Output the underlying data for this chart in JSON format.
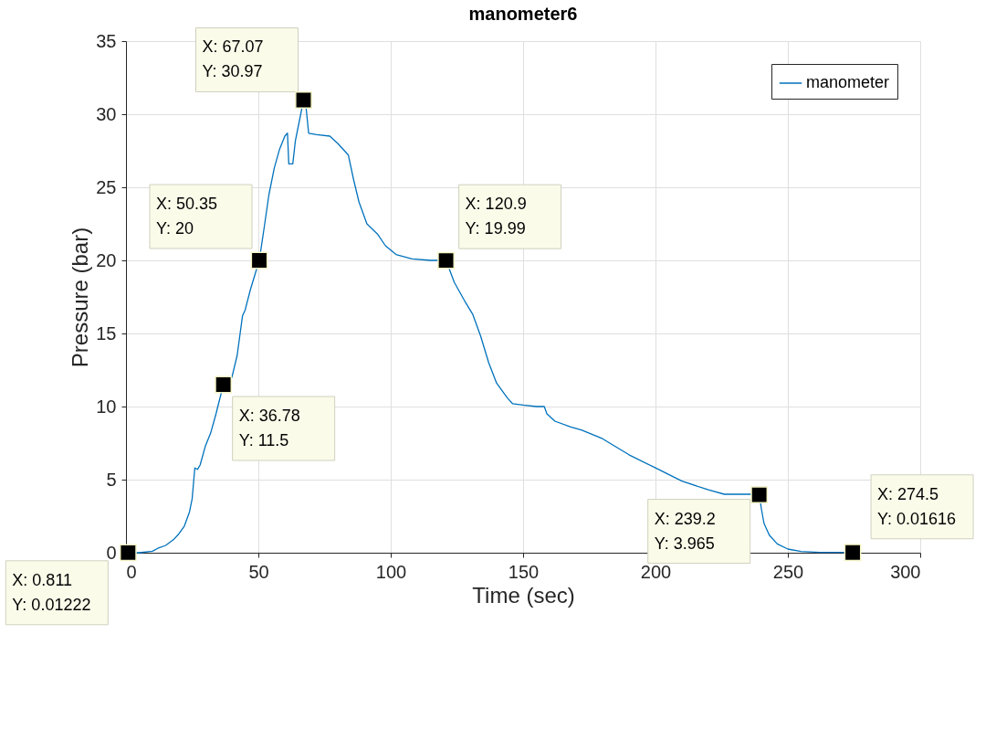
{
  "chart_data": {
    "type": "line",
    "title": "manometer6",
    "xlabel": "Time (sec)",
    "ylabel": "Pressure (bar)",
    "xlim": [
      0,
      300
    ],
    "ylim": [
      0,
      35
    ],
    "xticks": [
      0,
      50,
      100,
      150,
      200,
      250,
      300
    ],
    "yticks": [
      0,
      5,
      10,
      15,
      20,
      25,
      30,
      35
    ],
    "grid": true,
    "legend": "top right",
    "marker": "none",
    "line_style": "solid",
    "series": [
      {
        "name": "manometer",
        "color": "#0072bd",
        "x": [
          0.811,
          5,
          10,
          12,
          15,
          18,
          20,
          22,
          24,
          25,
          26,
          27,
          28,
          30,
          32,
          34,
          36.78,
          40,
          42,
          44,
          45,
          47,
          49,
          50.35,
          52,
          54,
          56,
          58,
          60,
          61,
          61.5,
          63,
          64,
          66,
          67.07,
          68,
          69,
          72,
          77,
          80,
          84,
          86,
          88,
          91,
          95,
          98,
          102,
          108,
          115,
          120.9,
          124,
          128,
          131,
          134,
          137,
          140,
          144,
          146,
          150,
          155,
          158,
          159,
          162,
          168,
          172,
          180,
          190,
          200,
          210,
          220,
          226,
          235,
          239.2,
          240,
          241,
          243,
          246,
          250,
          255,
          262,
          270,
          274.5
        ],
        "values": [
          0.0,
          0.0,
          0.1,
          0.3,
          0.5,
          0.9,
          1.3,
          1.8,
          2.8,
          3.7,
          5.8,
          5.7,
          6.0,
          7.3,
          8.2,
          9.5,
          11.5,
          12.0,
          13.5,
          16.2,
          16.6,
          18.0,
          19.2,
          20.0,
          22.0,
          24.5,
          26.3,
          27.6,
          28.5,
          28.7,
          26.6,
          26.6,
          28.2,
          30.0,
          31.0,
          30.5,
          28.7,
          28.6,
          28.5,
          28.0,
          27.2,
          25.5,
          24.0,
          22.5,
          21.8,
          21.0,
          20.4,
          20.1,
          20.0,
          20.0,
          18.5,
          17.2,
          16.3,
          14.8,
          13.0,
          11.6,
          10.6,
          10.2,
          10.1,
          10.0,
          10.0,
          9.5,
          9.0,
          8.6,
          8.4,
          7.8,
          6.7,
          5.8,
          4.9,
          4.3,
          4.0,
          4.0,
          4.0,
          3.0,
          2.0,
          1.2,
          0.6,
          0.25,
          0.08,
          0.02,
          0.02,
          0.0
        ]
      }
    ],
    "annotations": [
      {
        "text": "X: 0.811\nY: 0.01222",
        "x": 0.811,
        "y": 0.01222
      },
      {
        "text": "X: 36.78\nY: 11.5",
        "x": 36.78,
        "y": 11.5
      },
      {
        "text": "X: 50.35\nY: 20",
        "x": 50.35,
        "y": 20
      },
      {
        "text": "X: 67.07\nY: 30.97",
        "x": 67.07,
        "y": 30.97
      },
      {
        "text": "X: 120.9\nY: 19.99",
        "x": 120.9,
        "y": 19.99
      },
      {
        "text": "X: 239.2\nY: 3.965",
        "x": 239.2,
        "y": 3.965
      },
      {
        "text": "X: 274.5\nY: 0.01616",
        "x": 274.5,
        "y": 0.01616
      }
    ]
  }
}
